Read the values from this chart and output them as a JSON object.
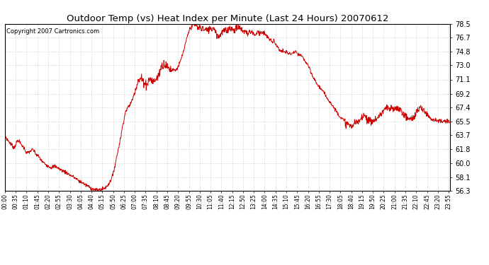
{
  "title": "Outdoor Temp (vs) Heat Index per Minute (Last 24 Hours) 20070612",
  "copyright_text": "Copyright 2007 Cartronics.com",
  "line_color": "#cc0000",
  "bg_color": "#ffffff",
  "plot_bg_color": "#ffffff",
  "grid_color": "#bbbbbb",
  "yticks": [
    56.3,
    58.1,
    60.0,
    61.8,
    63.7,
    65.5,
    67.4,
    69.2,
    71.1,
    73.0,
    74.8,
    76.7,
    78.5
  ],
  "ylim": [
    56.3,
    78.5
  ],
  "xtick_minutes": [
    0,
    35,
    70,
    105,
    140,
    175,
    210,
    245,
    280,
    315,
    350,
    385,
    420,
    455,
    490,
    525,
    560,
    595,
    630,
    665,
    700,
    735,
    770,
    805,
    840,
    875,
    910,
    945,
    980,
    1015,
    1050,
    1085,
    1120,
    1155,
    1190,
    1225,
    1260,
    1295,
    1330,
    1365,
    1400,
    1435
  ],
  "xtick_labels": [
    "00:00",
    "00:35",
    "01:10",
    "01:45",
    "02:20",
    "02:55",
    "03:30",
    "04:05",
    "04:40",
    "05:15",
    "05:50",
    "06:25",
    "07:00",
    "07:35",
    "08:10",
    "08:45",
    "09:20",
    "09:55",
    "10:30",
    "11:05",
    "11:40",
    "12:15",
    "12:50",
    "13:25",
    "14:00",
    "14:35",
    "15:10",
    "15:45",
    "16:20",
    "16:55",
    "17:30",
    "18:05",
    "18:40",
    "19:15",
    "19:50",
    "20:25",
    "21:00",
    "21:35",
    "22:10",
    "22:45",
    "23:20",
    "23:55"
  ],
  "data_profile": {
    "00:00": 63.7,
    "00:05": 63.3,
    "00:10": 63.0,
    "00:20": 62.5,
    "00:30": 62.0,
    "00:35": 62.5,
    "00:40": 62.9,
    "00:45": 63.0,
    "00:50": 62.6,
    "01:00": 62.1,
    "01:05": 61.8,
    "01:10": 61.3,
    "01:20": 61.5,
    "01:30": 61.8,
    "01:35": 61.5,
    "01:40": 61.2,
    "01:50": 60.8,
    "01:55": 60.5,
    "02:00": 60.2,
    "02:10": 59.9,
    "02:20": 59.6,
    "02:30": 59.4,
    "02:40": 59.6,
    "02:50": 59.4,
    "03:00": 59.1,
    "03:10": 58.9,
    "03:20": 58.7,
    "03:30": 58.4,
    "03:40": 58.2,
    "03:50": 57.9,
    "04:00": 57.6,
    "04:10": 57.4,
    "04:20": 57.1,
    "04:30": 56.9,
    "04:40": 56.6,
    "04:50": 56.45,
    "05:00": 56.4,
    "05:10": 56.45,
    "05:15": 56.5,
    "05:20": 56.6,
    "05:30": 56.9,
    "05:40": 57.5,
    "05:50": 58.5,
    "06:00": 60.5,
    "06:10": 62.5,
    "06:15": 63.5,
    "06:20": 64.8,
    "06:25": 65.8,
    "06:30": 66.8,
    "06:35": 67.2,
    "06:40": 67.5,
    "06:45": 67.8,
    "06:50": 68.2,
    "06:55": 68.8,
    "07:00": 69.5,
    "07:05": 70.2,
    "07:10": 70.8,
    "07:15": 71.0,
    "07:20": 71.3,
    "07:25": 71.0,
    "07:30": 70.8,
    "07:35": 70.5,
    "07:40": 70.5,
    "07:45": 71.0,
    "07:50": 71.2,
    "07:55": 71.0,
    "08:00": 70.8,
    "08:05": 71.0,
    "08:10": 71.2,
    "08:15": 71.5,
    "08:20": 72.0,
    "08:25": 72.8,
    "08:30": 73.0,
    "08:35": 73.2,
    "08:40": 73.0,
    "08:45": 72.8,
    "08:50": 72.6,
    "08:55": 72.5,
    "09:00": 72.4,
    "09:05": 72.5,
    "09:10": 72.3,
    "09:15": 72.5,
    "09:20": 72.8,
    "09:25": 73.2,
    "09:30": 73.8,
    "09:35": 74.5,
    "09:40": 75.2,
    "09:45": 76.0,
    "09:50": 76.8,
    "09:55": 77.5,
    "10:00": 78.0,
    "10:05": 78.3,
    "10:10": 78.5,
    "10:15": 78.4,
    "10:20": 78.2,
    "10:25": 77.9,
    "10:30": 78.1,
    "10:35": 77.8,
    "10:40": 78.0,
    "10:45": 77.6,
    "10:50": 77.8,
    "10:55": 77.5,
    "11:00": 77.7,
    "11:05": 78.0,
    "11:10": 77.8,
    "11:15": 78.1,
    "11:20": 77.6,
    "11:25": 77.2,
    "11:30": 76.7,
    "11:35": 77.0,
    "11:40": 77.3,
    "11:45": 77.5,
    "11:50": 77.6,
    "11:55": 77.5,
    "12:00": 77.7,
    "12:05": 77.9,
    "12:10": 78.0,
    "12:15": 77.8,
    "12:20": 77.6,
    "12:25": 77.8,
    "12:30": 77.9,
    "12:35": 78.0,
    "12:40": 77.9,
    "12:45": 77.7,
    "12:50": 77.6,
    "12:55": 77.5,
    "13:00": 77.4,
    "13:05": 77.2,
    "13:10": 77.5,
    "13:15": 77.3,
    "13:20": 77.5,
    "13:25": 77.2,
    "13:30": 77.0,
    "13:35": 77.3,
    "13:40": 77.5,
    "13:45": 77.3,
    "13:50": 77.5,
    "13:55": 77.3,
    "14:00": 77.2,
    "14:05": 76.9,
    "14:10": 76.7,
    "14:15": 76.5,
    "14:20": 76.3,
    "14:25": 76.0,
    "14:30": 76.5,
    "14:35": 75.8,
    "14:40": 75.5,
    "14:45": 75.2,
    "14:50": 75.0,
    "14:55": 74.8,
    "15:00": 74.9,
    "15:05": 74.7,
    "15:10": 74.8,
    "15:15": 74.6,
    "15:20": 74.5,
    "15:25": 74.5,
    "15:30": 74.6,
    "15:35": 74.7,
    "15:40": 74.8,
    "15:45": 74.5,
    "15:50": 74.4,
    "15:55": 74.3,
    "16:00": 74.2,
    "16:05": 73.9,
    "16:10": 73.6,
    "16:15": 73.3,
    "16:20": 73.0,
    "16:25": 72.5,
    "16:30": 72.0,
    "16:35": 71.5,
    "16:40": 71.2,
    "16:45": 70.8,
    "16:50": 70.5,
    "16:55": 70.2,
    "17:00": 70.0,
    "17:05": 69.7,
    "17:10": 69.4,
    "17:15": 69.1,
    "17:20": 68.8,
    "17:25": 68.5,
    "17:30": 68.2,
    "17:35": 67.9,
    "17:40": 67.6,
    "17:45": 67.3,
    "17:50": 67.0,
    "17:55": 66.7,
    "18:00": 66.4,
    "18:05": 66.1,
    "18:10": 65.9,
    "18:15": 65.7,
    "18:20": 65.5,
    "18:25": 65.3,
    "18:30": 65.1,
    "18:35": 65.0,
    "18:40": 64.9,
    "18:45": 65.0,
    "18:50": 65.2,
    "18:55": 65.5,
    "19:00": 65.3,
    "19:05": 65.5,
    "19:10": 65.8,
    "19:15": 66.2,
    "19:20": 66.5,
    "19:25": 66.3,
    "19:30": 66.0,
    "19:35": 65.7,
    "19:40": 65.5,
    "19:45": 65.5,
    "19:50": 65.6,
    "19:55": 65.7,
    "20:00": 65.8,
    "20:05": 66.0,
    "20:10": 66.2,
    "20:15": 66.5,
    "20:20": 66.7,
    "20:25": 67.0,
    "20:30": 67.2,
    "20:35": 67.3,
    "20:40": 67.2,
    "20:45": 67.0,
    "20:50": 67.3,
    "20:55": 67.2,
    "21:00": 67.0,
    "21:05": 67.3,
    "21:10": 67.4,
    "21:15": 67.2,
    "21:20": 67.0,
    "21:25": 66.7,
    "21:30": 66.5,
    "21:35": 66.2,
    "21:40": 66.0,
    "21:45": 65.9,
    "21:50": 65.8,
    "21:55": 65.9,
    "22:00": 66.0,
    "22:05": 66.3,
    "22:10": 66.7,
    "22:15": 67.0,
    "22:20": 67.2,
    "22:25": 67.3,
    "22:30": 67.2,
    "22:35": 67.0,
    "22:40": 66.8,
    "22:45": 66.5,
    "22:50": 66.3,
    "22:55": 66.1,
    "23:00": 65.9,
    "23:05": 65.8,
    "23:10": 65.7,
    "23:15": 65.7,
    "23:20": 65.6,
    "23:25": 65.6,
    "23:30": 65.5,
    "23:35": 65.5,
    "23:40": 65.5,
    "23:45": 65.5,
    "23:50": 65.5,
    "23:55": 65.5
  }
}
